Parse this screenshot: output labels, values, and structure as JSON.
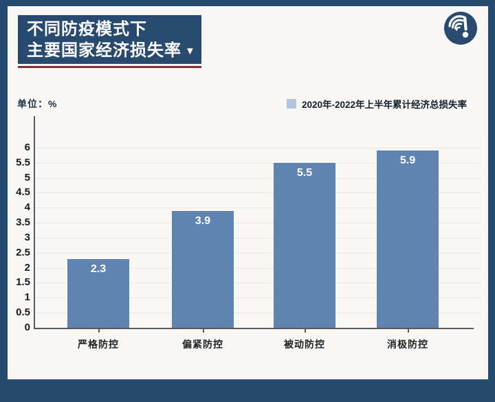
{
  "header": {
    "title_line1": "不同防疫模式下",
    "title_line2": "主要国家经济损失率",
    "title_arrow": "▼",
    "logo": "tide-news-logo"
  },
  "unit_label": "单位：%",
  "legend": {
    "swatch_color": "#b7c3dc",
    "label": "2020年-2022年上半年累计经济总损失率"
  },
  "chart_data": {
    "type": "bar",
    "title": "不同防疫模式下主要国家经济损失率",
    "categories": [
      "严格防控",
      "偏紧防控",
      "被动防控",
      "消极防控"
    ],
    "series": [
      {
        "name": "2020年-2022年上半年累计经济总损失率",
        "values": [
          2.3,
          3.9,
          5.5,
          5.9
        ]
      }
    ],
    "xlabel": "",
    "ylabel": "单位：%",
    "ylim": [
      0,
      6.5
    ],
    "yticks": [
      0,
      0.5,
      1,
      1.5,
      2,
      2.5,
      3,
      3.5,
      4,
      4.5,
      5,
      5.5,
      6
    ],
    "grid": "dotted-horizontal",
    "legend_position": "top-right",
    "bar_color": "#5f84b2",
    "value_label_color": "#ffffff"
  },
  "colors": {
    "frame": "#25496f",
    "card_bg": "#f8f7f5",
    "title_box_bg": "#274a6e",
    "title_text": "#ffffff",
    "red_underline": "#872f33",
    "axis": "#5a5a5a",
    "gridline": "#d8d8d8",
    "tick_label": "#1a1a1a",
    "category_label": "#222222",
    "unit_label_color": "#1c3049",
    "legend_text": "#141f2b"
  }
}
